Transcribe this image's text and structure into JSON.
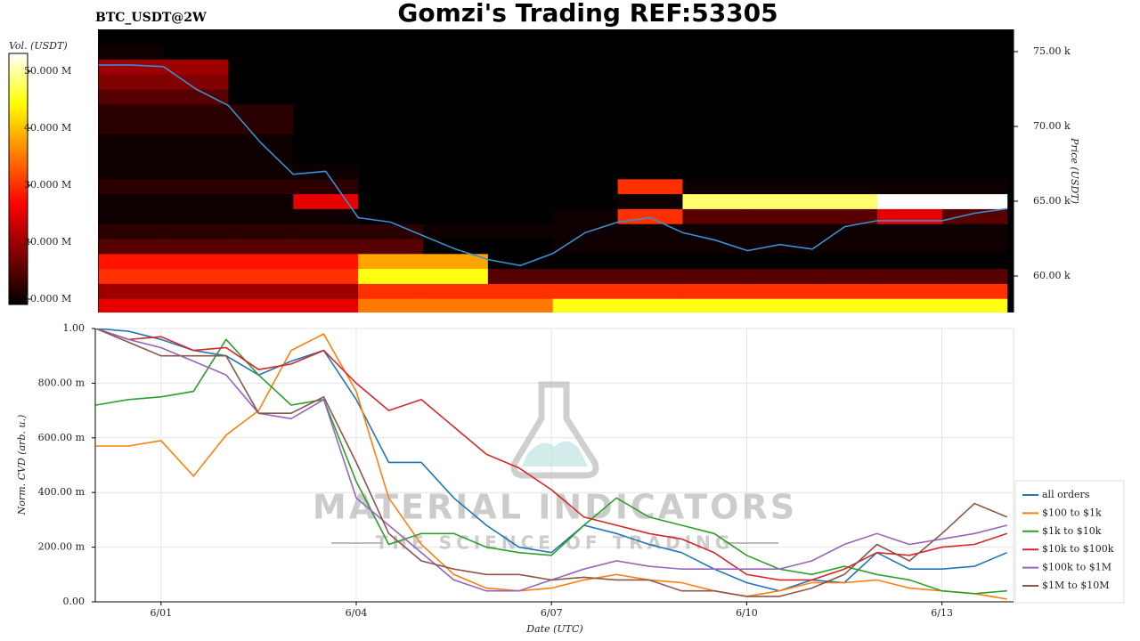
{
  "title": "Gomzi's Trading REF:53305",
  "watermark": {
    "brand": "MATERIAL INDICATORS",
    "tagline": "THE SCIENCE OF TRADING"
  },
  "chart_data": [
    {
      "type": "heatmap",
      "title": "BTC_USDT@2W",
      "ylabel": "Price (USDT)",
      "colorbar_label": "Vol. (USDT)",
      "xlim": [
        -0.01,
        14.1
      ],
      "ylim": [
        57560,
        76490
      ],
      "yticks": [
        {
          "value": 60000,
          "label": "60.00 k"
        },
        {
          "value": 65000,
          "label": "65.00 k"
        },
        {
          "value": 70000,
          "label": "70.00 k"
        },
        {
          "value": 75000,
          "label": "75.00 k"
        }
      ],
      "clim": [
        9060000,
        53130000
      ],
      "cticks": [
        {
          "value": 10000000,
          "label": "10.000 M"
        },
        {
          "value": 20000000,
          "label": "20.000 M"
        },
        {
          "value": 30000000,
          "label": "30.000 M"
        },
        {
          "value": 40000000,
          "label": "40.000 M"
        },
        {
          "value": 50000000,
          "label": "50.000 M"
        }
      ],
      "x_bins": [
        0,
        1,
        2,
        3,
        4,
        5,
        6,
        7,
        8,
        9,
        10,
        11,
        12,
        13,
        14
      ],
      "y_bins": [
        57500,
        58500,
        59500,
        60500,
        61500,
        62500,
        63500,
        64500,
        65500,
        66500,
        67500,
        68500,
        69500,
        70500,
        71500,
        72500,
        73500,
        74500,
        75500,
        76500
      ],
      "z": [
        [
          25000000.0,
          25000000.0,
          25000000.0,
          25000000.0,
          35000000.0,
          35000000.0,
          35000000.0,
          45000000.0,
          45000000.0,
          45000000.0,
          45000000.0,
          45000000.0,
          45000000.0,
          45000000.0
        ],
        [
          20000000.0,
          20000000.0,
          20000000.0,
          20000000.0,
          30000000.0,
          30000000.0,
          30000000.0,
          30000000.0,
          30000000.0,
          30000000.0,
          30000000.0,
          30000000.0,
          30000000.0,
          30000000.0
        ],
        [
          30000000.0,
          30000000.0,
          30000000.0,
          30000000.0,
          45000000.0,
          45000000.0,
          15000000.0,
          15000000.0,
          15000000.0,
          15000000.0,
          15000000.0,
          15000000.0,
          15000000.0,
          15000000.0
        ],
        [
          28000000.0,
          28000000.0,
          28000000.0,
          28000000.0,
          38000000.0,
          38000000.0,
          8000000.0,
          8000000.0,
          8000000.0,
          8000000.0,
          8000000.0,
          8000000.0,
          8000000.0,
          8000000.0
        ],
        [
          15000000.0,
          15000000.0,
          15000000.0,
          15000000.0,
          15000000.0,
          5000000.0,
          5000000.0,
          10000000.0,
          10000000.0,
          10000000.0,
          10000000.0,
          10000000.0,
          10000000.0,
          10000000.0
        ],
        [
          12000000.0,
          12000000.0,
          12000000.0,
          12000000.0,
          12000000.0,
          10000000.0,
          10000000.0,
          10000000.0,
          10000000.0,
          10000000.0,
          10000000.0,
          10000000.0,
          10000000.0,
          10000000.0
        ],
        [
          10000000.0,
          10000000.0,
          10000000.0,
          10000000.0,
          5000000.0,
          5000000.0,
          5000000.0,
          10000000.0,
          30000000.0,
          15000000.0,
          15000000.0,
          15000000.0,
          25000000.0,
          15000000.0
        ],
        [
          10000000.0,
          10000000.0,
          10000000.0,
          25000000.0,
          5000000.0,
          5000000.0,
          5000000.0,
          5000000.0,
          10000000.0,
          48000000.0,
          48000000.0,
          48000000.0,
          55000000.0,
          55000000.0
        ],
        [
          12000000.0,
          12000000.0,
          12000000.0,
          12000000.0,
          0,
          0,
          0,
          0,
          30000000.0,
          10000000.0,
          10000000.0,
          10000000.0,
          10000000.0,
          10000000.0
        ],
        [
          10000000.0,
          10000000.0,
          10000000.0,
          10000000.0,
          0,
          0,
          0,
          0,
          0,
          0,
          0,
          0,
          0,
          0
        ],
        [
          10000000.0,
          10000000.0,
          10000000.0,
          0,
          0,
          0,
          0,
          0,
          0,
          0,
          0,
          0,
          0,
          0
        ],
        [
          10000000.0,
          10000000.0,
          10000000.0,
          0,
          0,
          0,
          0,
          0,
          0,
          0,
          0,
          0,
          0,
          0
        ],
        [
          12000000.0,
          12000000.0,
          12000000.0,
          0,
          0,
          0,
          0,
          0,
          4000000.0,
          4000000.0,
          4000000.0,
          4000000.0,
          4000000.0,
          4000000.0
        ],
        [
          12000000.0,
          12000000.0,
          12000000.0,
          0,
          0,
          0,
          0,
          0,
          0,
          0,
          0,
          0,
          0,
          0
        ],
        [
          15000000.0,
          15000000.0,
          0,
          0,
          0,
          0,
          0,
          0,
          0,
          0,
          0,
          0,
          0,
          0
        ],
        [
          18000000.0,
          18000000.0,
          0,
          0,
          0,
          0,
          0,
          0,
          0,
          0,
          0,
          0,
          0,
          0
        ],
        [
          20000000.0,
          20000000.0,
          0,
          0,
          0,
          0,
          0,
          0,
          0,
          0,
          0,
          0,
          0,
          0
        ],
        [
          10000000.0,
          0,
          0,
          0,
          0,
          0,
          0,
          0,
          0,
          0,
          0,
          0,
          0,
          0
        ],
        [
          0,
          0,
          0,
          0,
          0,
          0,
          0,
          0,
          0,
          0,
          0,
          0,
          0,
          0
        ]
      ],
      "line": {
        "color": "#3a8fd0",
        "x": [
          0,
          0.5,
          1,
          1.5,
          2,
          2.5,
          3,
          3.5,
          4,
          4.5,
          5,
          5.5,
          6,
          6.5,
          7,
          7.5,
          8,
          8.5,
          9,
          9.5,
          10,
          10.5,
          11,
          11.5,
          12,
          12.5,
          13,
          13.5,
          14
        ],
        "values": [
          74100,
          74100,
          74000,
          72500,
          71400,
          68900,
          66800,
          67000,
          63900,
          63600,
          62700,
          61800,
          61100,
          60700,
          61500,
          62900,
          63600,
          63900,
          62900,
          62400,
          61700,
          62100,
          61800,
          63300,
          63700,
          63700,
          63700,
          64200,
          64500
        ]
      }
    },
    {
      "type": "line",
      "xlabel": "Date (UTC)",
      "ylabel": "Norm. CVD (arb. u.)",
      "grid": true,
      "legend": "right",
      "xlim": [
        -0.01,
        14.1
      ],
      "ylim": [
        0,
        1
      ],
      "xticks": [
        {
          "value": 1,
          "label": "6/01"
        },
        {
          "value": 4,
          "label": "6/04"
        },
        {
          "value": 7,
          "label": "6/07"
        },
        {
          "value": 10,
          "label": "6/10"
        },
        {
          "value": 13,
          "label": "6/13"
        }
      ],
      "yticks": [
        {
          "value": 0,
          "label": "0.00"
        },
        {
          "value": 0.2,
          "label": "200.00 m"
        },
        {
          "value": 0.4,
          "label": "400.00 m"
        },
        {
          "value": 0.6,
          "label": "600.00 m"
        },
        {
          "value": 0.8,
          "label": "800.00 m"
        },
        {
          "value": 1,
          "label": "1.00"
        }
      ],
      "x": [
        0,
        0.5,
        1,
        1.5,
        2,
        2.5,
        3,
        3.5,
        4,
        4.5,
        5,
        5.5,
        6,
        6.5,
        7,
        7.5,
        8,
        8.5,
        9,
        9.5,
        10,
        10.5,
        11,
        11.5,
        12,
        12.5,
        13,
        13.5,
        14
      ],
      "series": [
        {
          "name": "all orders",
          "color": "#1f77b4",
          "values": [
            1.0,
            0.99,
            0.96,
            0.92,
            0.9,
            0.83,
            0.88,
            0.92,
            0.74,
            0.51,
            0.51,
            0.38,
            0.28,
            0.2,
            0.18,
            0.28,
            0.25,
            0.21,
            0.18,
            0.12,
            0.07,
            0.04,
            0.08,
            0.07,
            0.18,
            0.12,
            0.12,
            0.13,
            0.18
          ]
        },
        {
          "name": "$100 to $1k",
          "color": "#ff7f0e",
          "values": [
            0.57,
            0.57,
            0.59,
            0.46,
            0.61,
            0.7,
            0.92,
            0.98,
            0.77,
            0.38,
            0.21,
            0.1,
            0.05,
            0.04,
            0.05,
            0.08,
            0.1,
            0.08,
            0.07,
            0.04,
            0.02,
            0.04,
            0.07,
            0.07,
            0.08,
            0.05,
            0.04,
            0.03,
            0.01
          ]
        },
        {
          "name": "$1k to $10k",
          "color": "#2ca02c",
          "values": [
            0.72,
            0.74,
            0.75,
            0.77,
            0.96,
            0.83,
            0.72,
            0.74,
            0.44,
            0.21,
            0.25,
            0.25,
            0.2,
            0.18,
            0.17,
            0.28,
            0.38,
            0.31,
            0.28,
            0.25,
            0.17,
            0.12,
            0.1,
            0.13,
            0.1,
            0.08,
            0.04,
            0.03,
            0.04
          ]
        },
        {
          "name": "$10k to $100k",
          "color": "#d62728",
          "values": [
            1.0,
            0.96,
            0.97,
            0.92,
            0.93,
            0.85,
            0.87,
            0.92,
            0.8,
            0.7,
            0.74,
            0.64,
            0.54,
            0.49,
            0.41,
            0.31,
            0.28,
            0.25,
            0.23,
            0.18,
            0.1,
            0.08,
            0.08,
            0.12,
            0.18,
            0.17,
            0.2,
            0.21,
            0.25
          ]
        },
        {
          "name": "$100k to $1M",
          "color": "#9467bd",
          "values": [
            1.0,
            0.96,
            0.93,
            0.88,
            0.83,
            0.69,
            0.67,
            0.74,
            0.38,
            0.28,
            0.18,
            0.08,
            0.04,
            0.04,
            0.08,
            0.12,
            0.15,
            0.13,
            0.12,
            0.12,
            0.12,
            0.12,
            0.15,
            0.21,
            0.25,
            0.21,
            0.23,
            0.25,
            0.28
          ]
        },
        {
          "name": "$1M to $10M",
          "color": "#8c564b",
          "values": [
            1.0,
            0.95,
            0.9,
            0.9,
            0.9,
            0.69,
            0.69,
            0.75,
            0.51,
            0.25,
            0.15,
            0.12,
            0.1,
            0.1,
            0.08,
            0.09,
            0.08,
            0.08,
            0.04,
            0.04,
            0.02,
            0.02,
            0.05,
            0.1,
            0.21,
            0.15,
            0.25,
            0.36,
            0.31
          ]
        }
      ]
    }
  ]
}
